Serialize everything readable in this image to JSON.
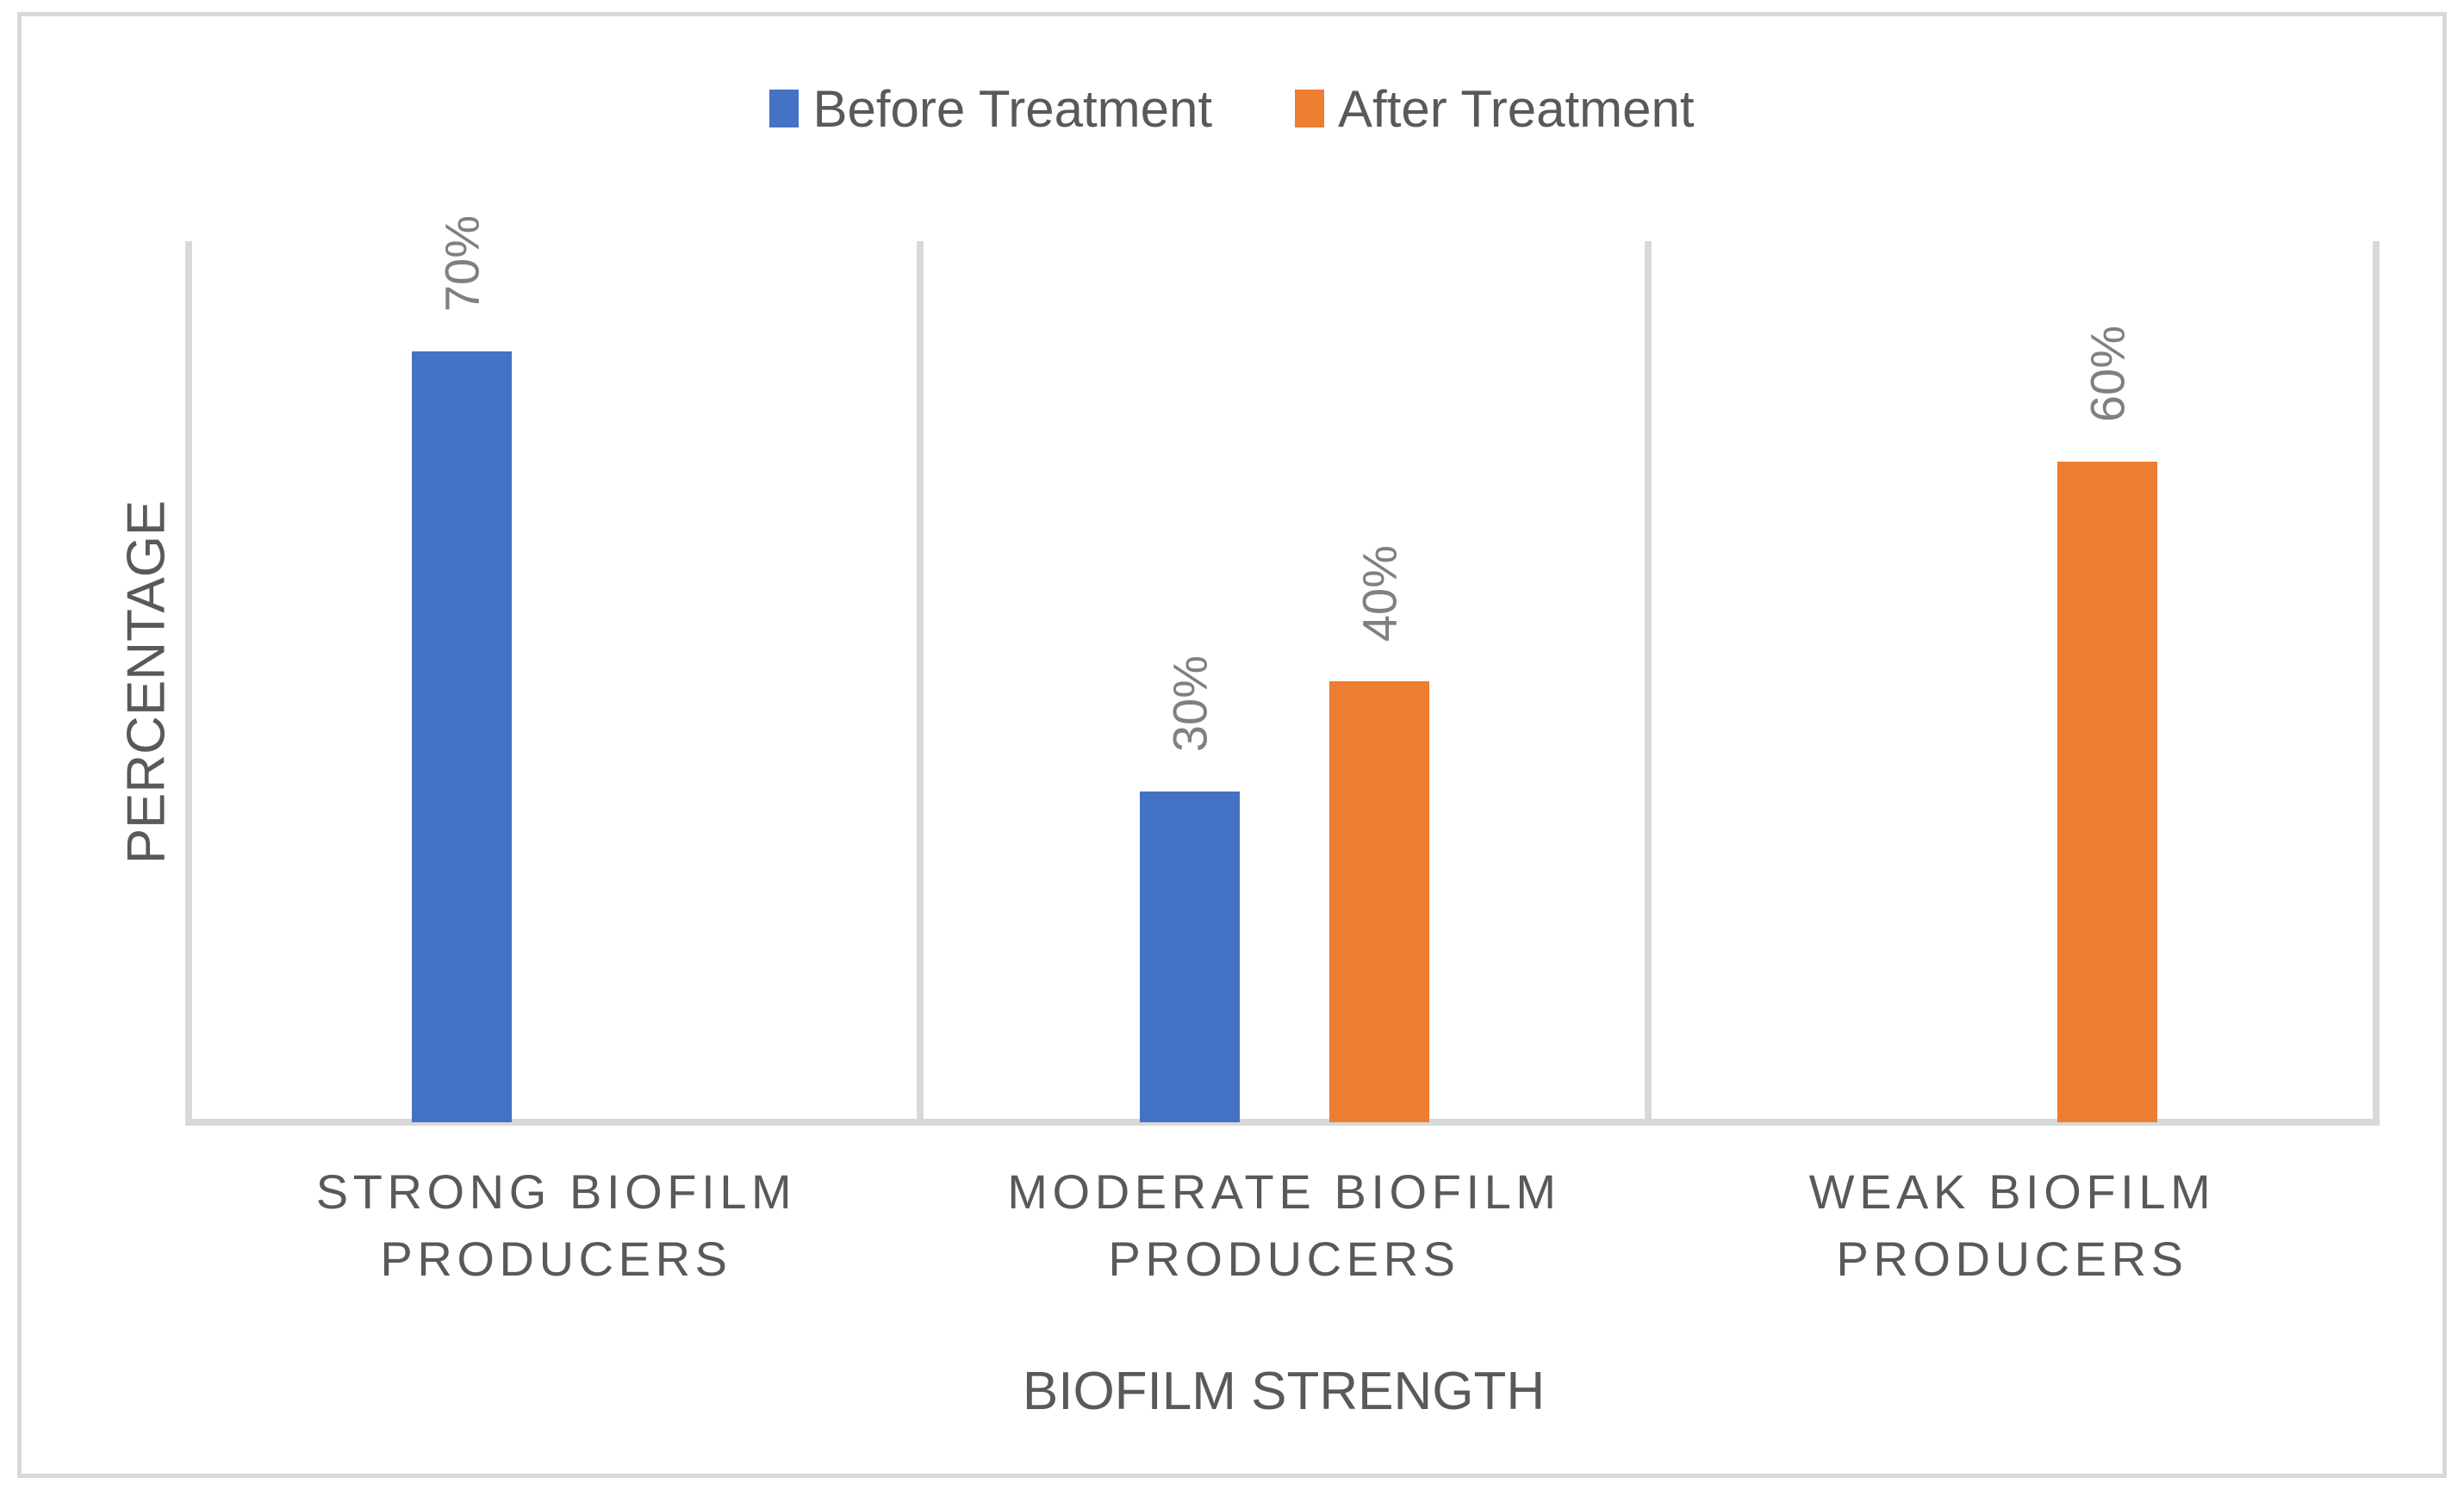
{
  "figure": {
    "background": "#FFFFFF",
    "border_color": "#D9D9D9"
  },
  "colors": {
    "axis_line": "#D9D9D9",
    "text": "#595959",
    "data_label": "#808080"
  },
  "axes": {
    "y_title": "PERCENTAGE",
    "x_title": "BIOFILM STRENGTH"
  },
  "chart_data": {
    "type": "bar",
    "title": "",
    "categories": [
      "STRONG BIOFILM\nPRODUCERS",
      "MODERATE BIOFILM\nPRODUCERS",
      "WEAK BIOFILM\nPRODUCERS"
    ],
    "xlabel": "BIOFILM STRENGTH",
    "ylabel": "PERCENTAGE",
    "ylim": [
      0,
      80
    ],
    "y_ticks_visible": false,
    "grid": "vertical category separators only",
    "legend_position": "top",
    "data_label_rotation": -90,
    "series": [
      {
        "name": "Before Treatment",
        "color": "#4472C4",
        "values": [
          70,
          30,
          null
        ],
        "data_labels": [
          "70%",
          "30%",
          null
        ]
      },
      {
        "name": "After Treatment",
        "color": "#ED7D31",
        "values": [
          null,
          40,
          60
        ],
        "data_labels": [
          null,
          "40%",
          "60%"
        ]
      }
    ]
  }
}
